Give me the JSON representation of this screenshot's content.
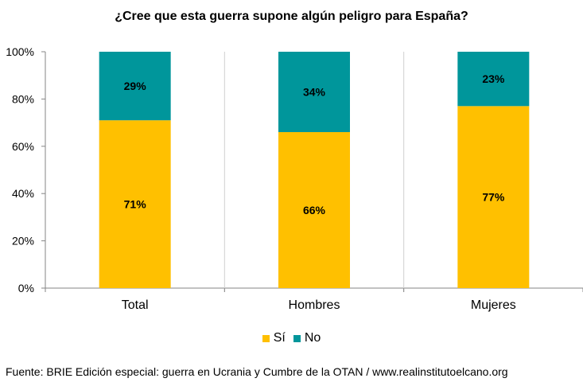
{
  "chart_data": {
    "type": "bar",
    "stacked": true,
    "title": "¿Cree que esta guerra supone algún peligro para España?",
    "categories": [
      "Total",
      "Hombres",
      "Mujeres"
    ],
    "series": [
      {
        "name": "Sí",
        "values": [
          71,
          66,
          77
        ],
        "labels": [
          "71%",
          "66%",
          "77%"
        ],
        "color": "#ffc000"
      },
      {
        "name": "No",
        "values": [
          29,
          34,
          23
        ],
        "labels": [
          "29%",
          "34%",
          "23%"
        ],
        "color": "#00969b"
      }
    ],
    "ylim": [
      0,
      100
    ],
    "yticks": [
      0,
      20,
      40,
      60,
      80,
      100
    ],
    "ytick_labels": [
      "0%",
      "20%",
      "40%",
      "60%",
      "80%",
      "100%"
    ],
    "grid": "vertical separators between categories",
    "legend_position": "bottom-center"
  },
  "source": "Fuente: BRIE Edición especial: guerra en Ucrania y Cumbre de la OTAN / www.realinstitutoelcano.org"
}
